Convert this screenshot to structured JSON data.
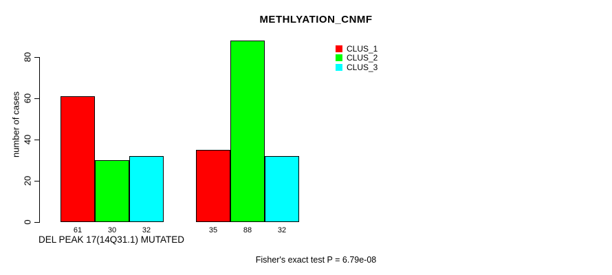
{
  "title": "METHLYATION_CNMF",
  "chart_data": {
    "type": "bar",
    "title": "METHLYATION_CNMF",
    "xlabel": "DEL PEAK 17(14Q31.1) MUTATED",
    "ylabel": "number of cases",
    "yticks": [
      0,
      20,
      40,
      60,
      80
    ],
    "ylim": [
      0,
      90
    ],
    "grid": false,
    "legend_position": "top-right",
    "categories": [
      "DEL PEAK 17(14Q31.1) MUTATED",
      ""
    ],
    "series": [
      {
        "name": "CLUS_1",
        "color": "#ff0000",
        "values": [
          61,
          35
        ]
      },
      {
        "name": "CLUS_2",
        "color": "#00ff00",
        "values": [
          30,
          88
        ]
      },
      {
        "name": "CLUS_3",
        "color": "#00ffff",
        "values": [
          32,
          32
        ]
      }
    ],
    "bar_value_labels": [
      [
        61,
        30,
        32
      ],
      [
        35,
        88,
        32
      ]
    ],
    "annotation": "Fisher's exact test P = 6.79e-08"
  },
  "colors": {
    "background": "#ffffff",
    "axis": "#000000",
    "bar_border": "#000000",
    "text": "#000000"
  }
}
